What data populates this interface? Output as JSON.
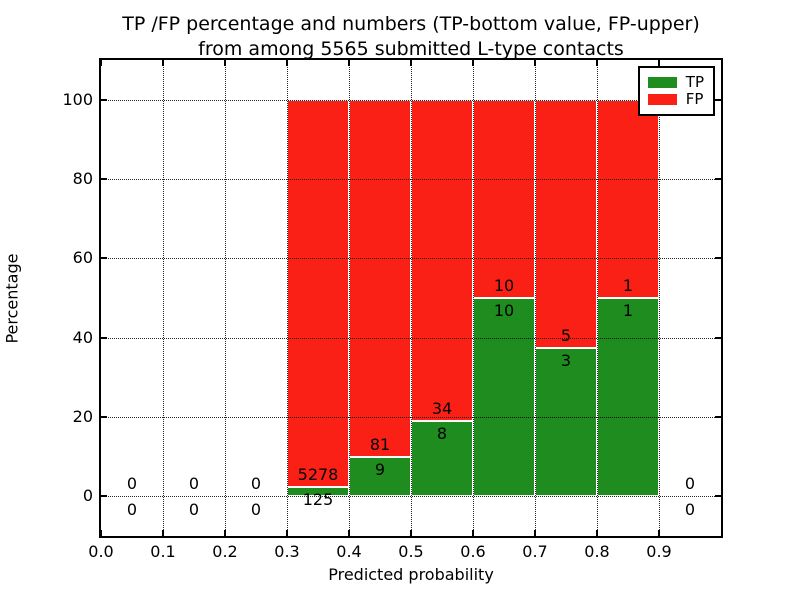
{
  "title": {
    "line1": "TP /FP percentage and numbers (TP-bottom value, FP-upper)",
    "line2": "from among 5565 submitted L-type contacts"
  },
  "axes": {
    "xlabel": "Predicted probability",
    "ylabel": "Percentage"
  },
  "legend": {
    "tp_label": "TP",
    "fp_label": "FP"
  },
  "colors": {
    "tp_green": "#1e8c1e",
    "fp_red": "#fb2015",
    "grid": "#000000",
    "frame": "#000000",
    "background": "#ffffff"
  },
  "chart_data": {
    "type": "bar",
    "stacked": true,
    "title": "TP /FP percentage and numbers (TP-bottom value, FP-upper)\nfrom among 5565 submitted L-type contacts",
    "xlabel": "Predicted probability",
    "ylabel": "Percentage",
    "xlim": [
      0.0,
      1.0
    ],
    "ylim": [
      -10,
      110
    ],
    "x_tick_labels": [
      "0.0",
      "0.1",
      "0.2",
      "0.3",
      "0.4",
      "0.5",
      "0.6",
      "0.7",
      "0.8",
      "0.9"
    ],
    "y_ticks": [
      0,
      20,
      40,
      60,
      80,
      100
    ],
    "grid": "dotted black, drawn over bars",
    "legend_position": "upper-right",
    "total_submitted": 5565,
    "series": [
      {
        "name": "TP",
        "color": "#1e8c1e"
      },
      {
        "name": "FP",
        "color": "#fb2015"
      }
    ],
    "bins": [
      {
        "range": [
          0.0,
          0.1
        ],
        "tp": 0,
        "fp": 0,
        "tp_pct": null,
        "fp_pct": null
      },
      {
        "range": [
          0.1,
          0.2
        ],
        "tp": 0,
        "fp": 0,
        "tp_pct": null,
        "fp_pct": null
      },
      {
        "range": [
          0.2,
          0.3
        ],
        "tp": 0,
        "fp": 0,
        "tp_pct": null,
        "fp_pct": null
      },
      {
        "range": [
          0.3,
          0.4
        ],
        "tp": 125,
        "fp": 5278,
        "tp_pct": 2.31,
        "fp_pct": 97.69
      },
      {
        "range": [
          0.4,
          0.5
        ],
        "tp": 9,
        "fp": 81,
        "tp_pct": 10.0,
        "fp_pct": 90.0
      },
      {
        "range": [
          0.5,
          0.6
        ],
        "tp": 8,
        "fp": 34,
        "tp_pct": 19.05,
        "fp_pct": 80.95
      },
      {
        "range": [
          0.6,
          0.7
        ],
        "tp": 10,
        "fp": 10,
        "tp_pct": 50.0,
        "fp_pct": 50.0
      },
      {
        "range": [
          0.7,
          0.8
        ],
        "tp": 3,
        "fp": 5,
        "tp_pct": 37.5,
        "fp_pct": 62.5
      },
      {
        "range": [
          0.8,
          0.9
        ],
        "tp": 1,
        "fp": 1,
        "tp_pct": 50.0,
        "fp_pct": 50.0
      },
      {
        "range": [
          0.9,
          1.0
        ],
        "tp": 0,
        "fp": 0,
        "tp_pct": null,
        "fp_pct": null
      }
    ]
  }
}
